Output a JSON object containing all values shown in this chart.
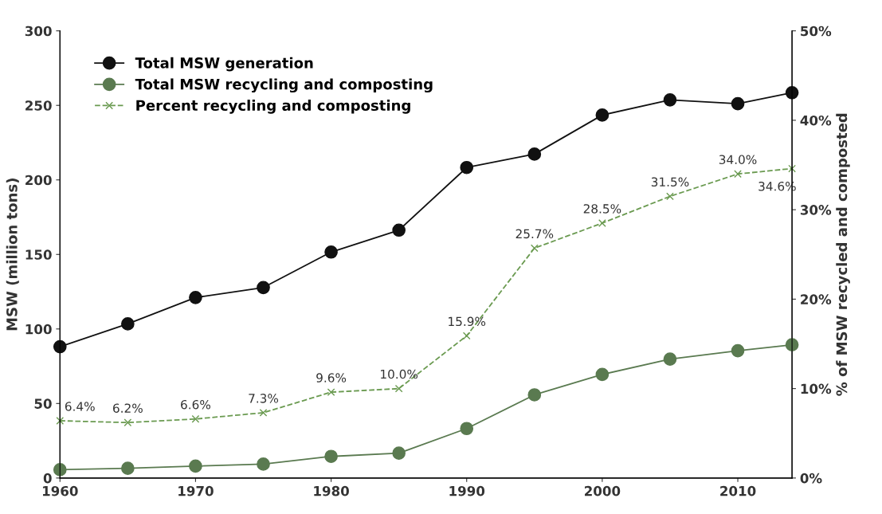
{
  "chart_data": {
    "type": "line",
    "x": [
      1960,
      1965,
      1970,
      1975,
      1980,
      1985,
      1990,
      1995,
      2000,
      2005,
      2010,
      2014
    ],
    "xlim": [
      1960,
      2014
    ],
    "xticks": [
      1960,
      1970,
      1980,
      1990,
      2000,
      2010
    ],
    "ylim": [
      0,
      300
    ],
    "yticks": [
      0,
      50,
      100,
      150,
      200,
      250,
      300
    ],
    "y2lim": [
      0,
      50
    ],
    "y2ticks": [
      {
        "value": 0,
        "label": "0%"
      },
      {
        "value": 10,
        "label": "10%"
      },
      {
        "value": 20,
        "label": "20%"
      },
      {
        "value": 30,
        "label": "30%"
      },
      {
        "value": 40,
        "label": "40%"
      },
      {
        "value": 50,
        "label": "50%"
      }
    ],
    "ylabel": "MSW (million tons)",
    "y2label": "% of MSW recycled and composted",
    "grid": false,
    "legend": "top left",
    "series": [
      {
        "name": "Total MSW generation",
        "color": "#111111",
        "marker": "circle",
        "line_style": "solid",
        "values": [
          88.1,
          103.4,
          121.1,
          127.8,
          151.6,
          166.3,
          208.3,
          217.3,
          243.5,
          253.7,
          251.1,
          258.5
        ]
      },
      {
        "name": "Total MSW recycling and composting",
        "color": "#5a7a50",
        "marker": "circle",
        "line_style": "solid",
        "values": [
          5.6,
          6.5,
          8.0,
          9.3,
          14.5,
          16.7,
          33.2,
          55.8,
          69.5,
          79.8,
          85.4,
          89.4
        ]
      },
      {
        "name": "Percent recycling and composting",
        "color": "#6a9a50",
        "marker": "cross",
        "line_style": "dashed",
        "axis": "y2",
        "values": [
          6.4,
          6.2,
          6.6,
          7.3,
          9.6,
          10.0,
          15.9,
          25.7,
          28.5,
          31.5,
          34.0,
          34.6
        ],
        "value_labels": [
          "6.4%",
          "6.2%",
          "6.6%",
          "7.3%",
          "9.6%",
          "10.0%",
          "15.9%",
          "25.7%",
          "28.5%",
          "31.5%",
          "34.0%",
          "34.6%"
        ]
      }
    ]
  }
}
